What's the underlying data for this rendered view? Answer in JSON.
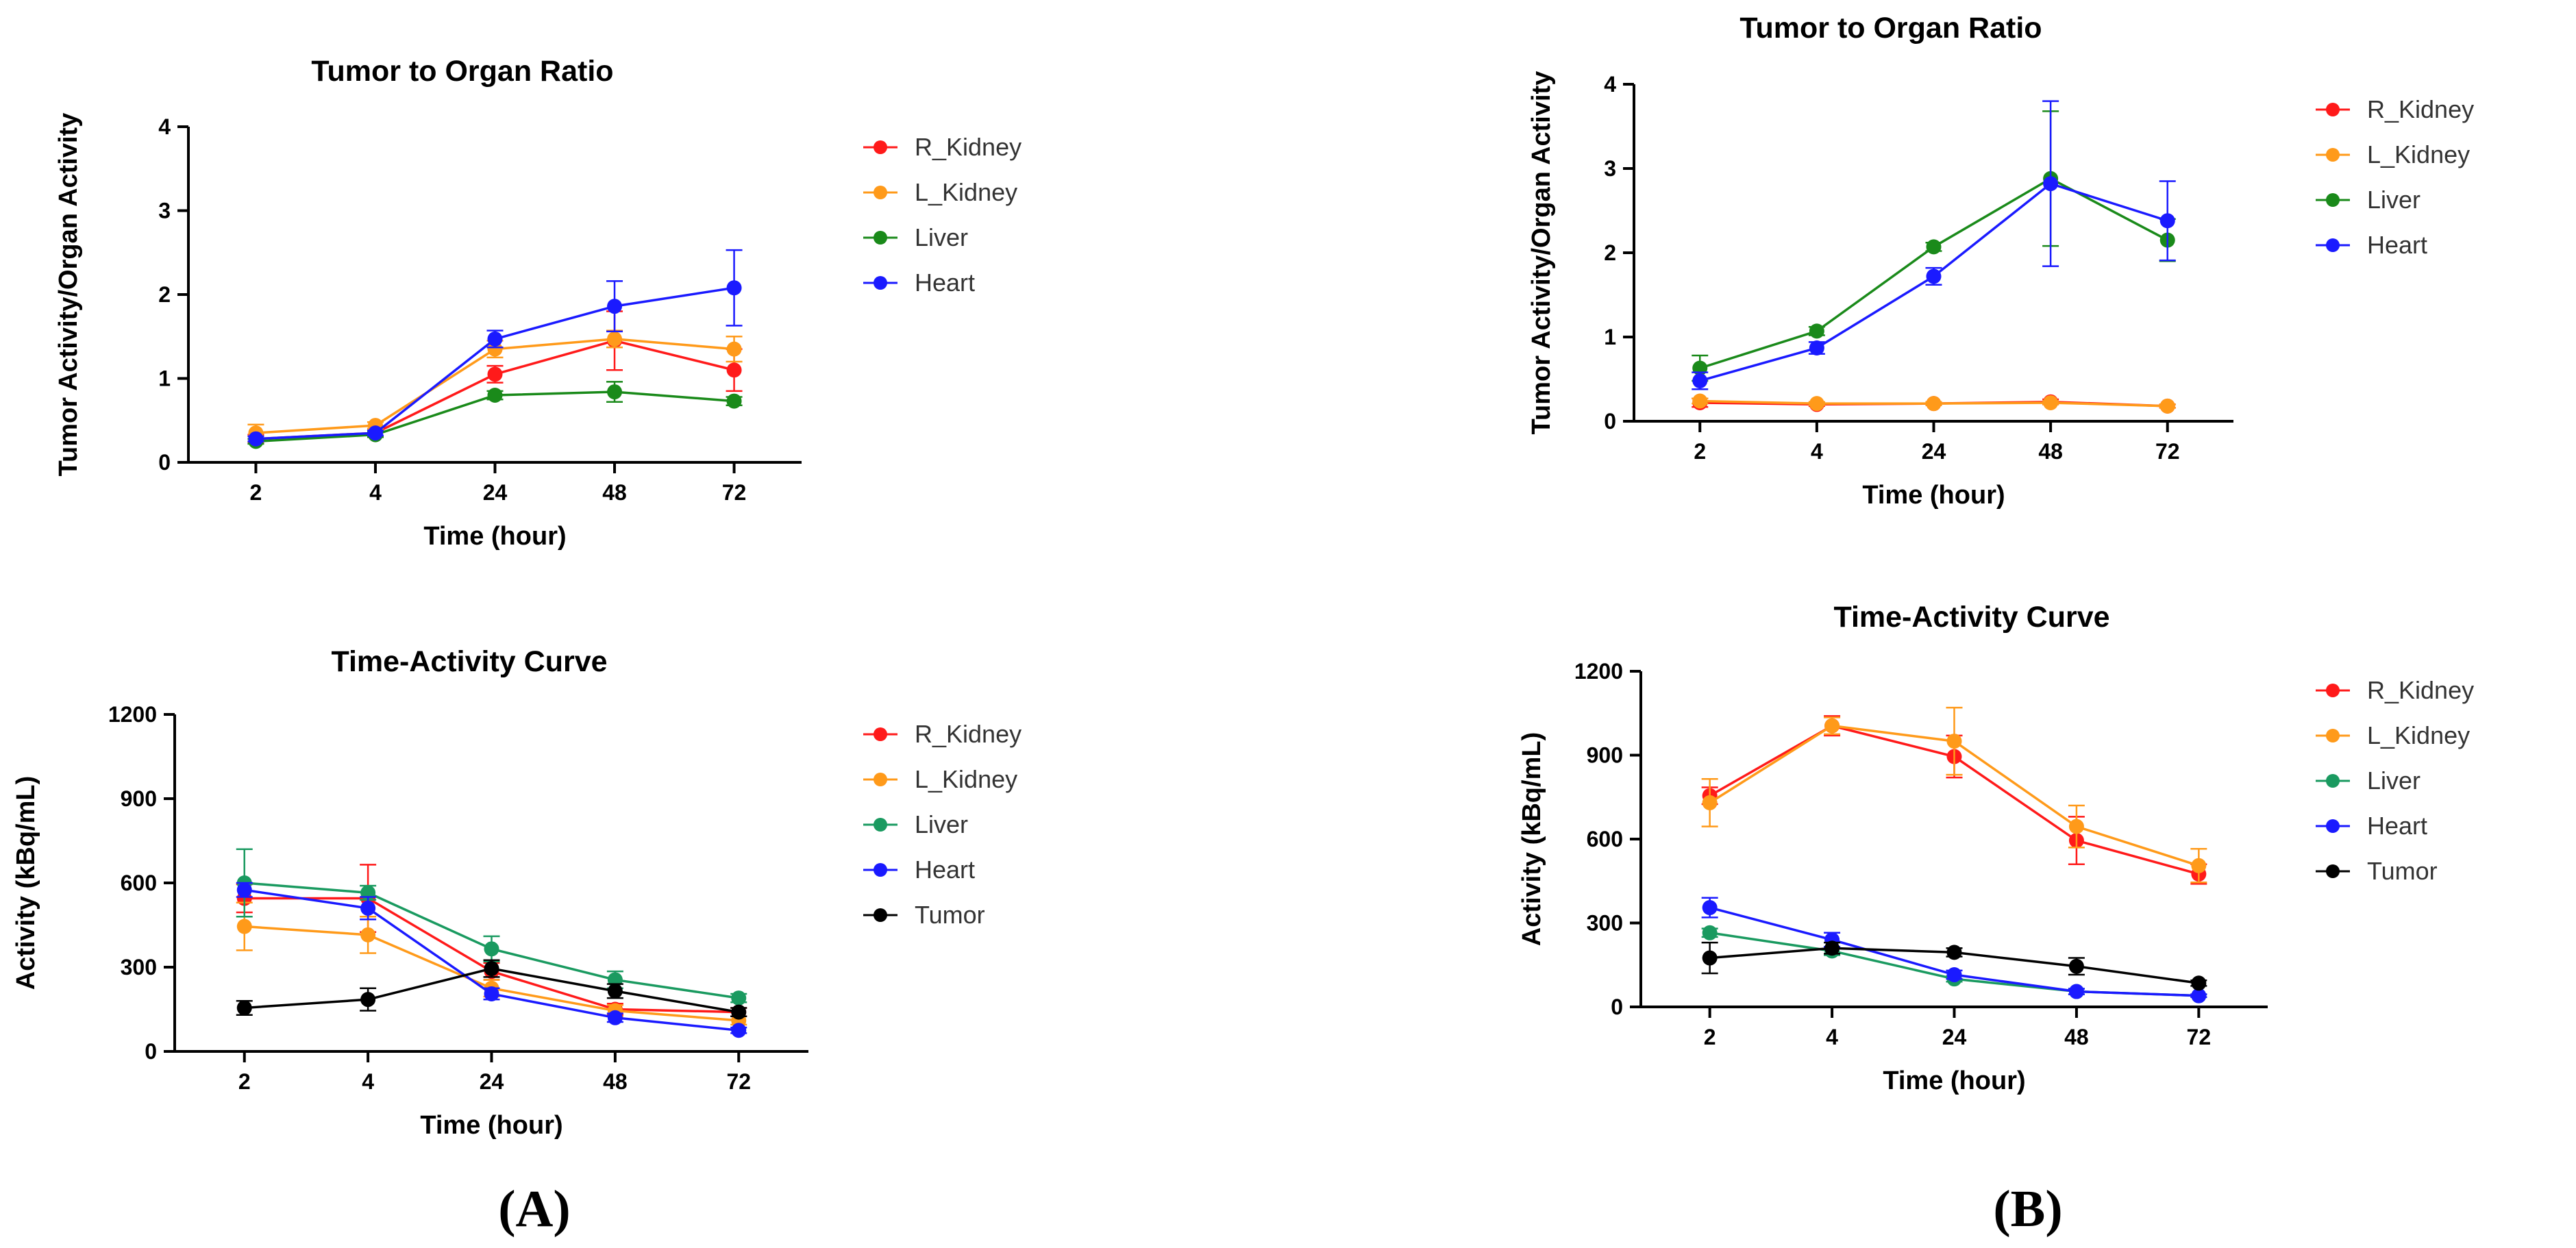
{
  "panels": [
    {
      "label": "(A)"
    },
    {
      "label": "(B)"
    }
  ],
  "colors": {
    "R_Kidney": "#ff1a1a",
    "L_Kidney": "#ff9a1a",
    "Liver_top": "#1a8a1a",
    "Liver_bottom": "#1a9a60",
    "Heart": "#1a1aff",
    "Tumor": "#000000"
  },
  "chart_data": [
    {
      "panel": "A",
      "type": "line",
      "title": "Tumor to Organ Ratio",
      "xlabel": "Time (hour)",
      "ylabel": "Tumor Activity/Organ Activity",
      "categories": [
        "2",
        "4",
        "24",
        "48",
        "72"
      ],
      "ylim": [
        0,
        4
      ],
      "yticks": [
        0,
        1,
        2,
        3,
        4
      ],
      "legend_position": "right",
      "series": [
        {
          "name": "R_Kidney",
          "color": "#ff1a1a",
          "values": [
            0.28,
            0.35,
            1.05,
            1.45,
            1.1
          ],
          "errors": [
            0.05,
            0.05,
            0.1,
            0.35,
            0.25
          ]
        },
        {
          "name": "L_Kidney",
          "color": "#ff9a1a",
          "values": [
            0.35,
            0.44,
            1.35,
            1.47,
            1.35
          ],
          "errors": [
            0.1,
            0.04,
            0.1,
            0.1,
            0.15
          ]
        },
        {
          "name": "Liver",
          "color": "#1a8a1a",
          "values": [
            0.25,
            0.33,
            0.8,
            0.84,
            0.73
          ],
          "errors": [
            0.03,
            0.03,
            0.05,
            0.12,
            0.05
          ]
        },
        {
          "name": "Heart",
          "color": "#1a1aff",
          "values": [
            0.28,
            0.35,
            1.47,
            1.86,
            2.08
          ],
          "errors": [
            0.03,
            0.03,
            0.1,
            0.3,
            0.45
          ]
        }
      ]
    },
    {
      "panel": "A",
      "type": "line",
      "title": "Time-Activity Curve",
      "xlabel": "Time (hour)",
      "ylabel": "Activity (kBq/mL)",
      "categories": [
        "2",
        "4",
        "24",
        "48",
        "72"
      ],
      "ylim": [
        0,
        1200
      ],
      "yticks": [
        0,
        300,
        600,
        900,
        1200
      ],
      "legend_position": "right",
      "series": [
        {
          "name": "R_Kidney",
          "color": "#ff1a1a",
          "values": [
            545,
            545,
            285,
            150,
            140
          ],
          "errors": [
            50,
            120,
            30,
            20,
            15
          ]
        },
        {
          "name": "L_Kidney",
          "color": "#ff9a1a",
          "values": [
            445,
            415,
            225,
            145,
            110
          ],
          "errors": [
            85,
            65,
            30,
            20,
            15
          ]
        },
        {
          "name": "Liver",
          "color": "#1a9a60",
          "values": [
            600,
            565,
            365,
            255,
            190
          ],
          "errors": [
            120,
            25,
            45,
            30,
            15
          ]
        },
        {
          "name": "Heart",
          "color": "#1a1aff",
          "values": [
            575,
            510,
            205,
            120,
            75
          ],
          "errors": [
            25,
            40,
            20,
            15,
            10
          ]
        },
        {
          "name": "Tumor",
          "color": "#000000",
          "values": [
            155,
            185,
            295,
            215,
            140
          ],
          "errors": [
            25,
            40,
            30,
            25,
            15
          ]
        }
      ]
    },
    {
      "panel": "B",
      "type": "line",
      "title": "Tumor to Organ Ratio",
      "xlabel": "Time (hour)",
      "ylabel": "Tumor Activity/Organ Activity",
      "categories": [
        "2",
        "4",
        "24",
        "48",
        "72"
      ],
      "ylim": [
        0,
        4
      ],
      "yticks": [
        0,
        1,
        2,
        3,
        4
      ],
      "legend_position": "right",
      "series": [
        {
          "name": "R_Kidney",
          "color": "#ff1a1a",
          "values": [
            0.22,
            0.2,
            0.21,
            0.23,
            0.18
          ],
          "errors": [
            0.05,
            0.02,
            0.02,
            0.03,
            0.02
          ]
        },
        {
          "name": "L_Kidney",
          "color": "#ff9a1a",
          "values": [
            0.24,
            0.21,
            0.21,
            0.22,
            0.18
          ],
          "errors": [
            0.03,
            0.02,
            0.02,
            0.02,
            0.02
          ]
        },
        {
          "name": "Liver",
          "color": "#1a8a1a",
          "values": [
            0.63,
            1.07,
            2.07,
            2.88,
            2.15
          ],
          "errors": [
            0.15,
            0.05,
            0.05,
            0.8,
            0.25
          ]
        },
        {
          "name": "Heart",
          "color": "#1a1aff",
          "values": [
            0.48,
            0.87,
            1.72,
            2.82,
            2.38
          ],
          "errors": [
            0.1,
            0.07,
            0.1,
            0.98,
            0.47
          ]
        }
      ]
    },
    {
      "panel": "B",
      "type": "line",
      "title": "Time-Activity Curve",
      "xlabel": "Time (hour)",
      "ylabel": "Activity (kBq/mL)",
      "categories": [
        "2",
        "4",
        "24",
        "48",
        "72"
      ],
      "ylim": [
        0,
        1200
      ],
      "yticks": [
        0,
        300,
        600,
        900,
        1200
      ],
      "legend_position": "right",
      "series": [
        {
          "name": "R_Kidney",
          "color": "#ff1a1a",
          "values": [
            755,
            1005,
            895,
            595,
            475
          ],
          "errors": [
            30,
            35,
            75,
            85,
            35
          ]
        },
        {
          "name": "L_Kidney",
          "color": "#ff9a1a",
          "values": [
            730,
            1005,
            950,
            645,
            505
          ],
          "errors": [
            85,
            30,
            120,
            75,
            60
          ]
        },
        {
          "name": "Liver",
          "color": "#1a9a60",
          "values": [
            265,
            200,
            100,
            55,
            40
          ],
          "errors": [
            15,
            15,
            10,
            10,
            5
          ]
        },
        {
          "name": "Heart",
          "color": "#1a1aff",
          "values": [
            355,
            240,
            115,
            55,
            40
          ],
          "errors": [
            35,
            25,
            15,
            10,
            5
          ]
        },
        {
          "name": "Tumor",
          "color": "#000000",
          "values": [
            175,
            210,
            195,
            145,
            85
          ],
          "errors": [
            55,
            20,
            15,
            30,
            10
          ]
        }
      ]
    }
  ]
}
